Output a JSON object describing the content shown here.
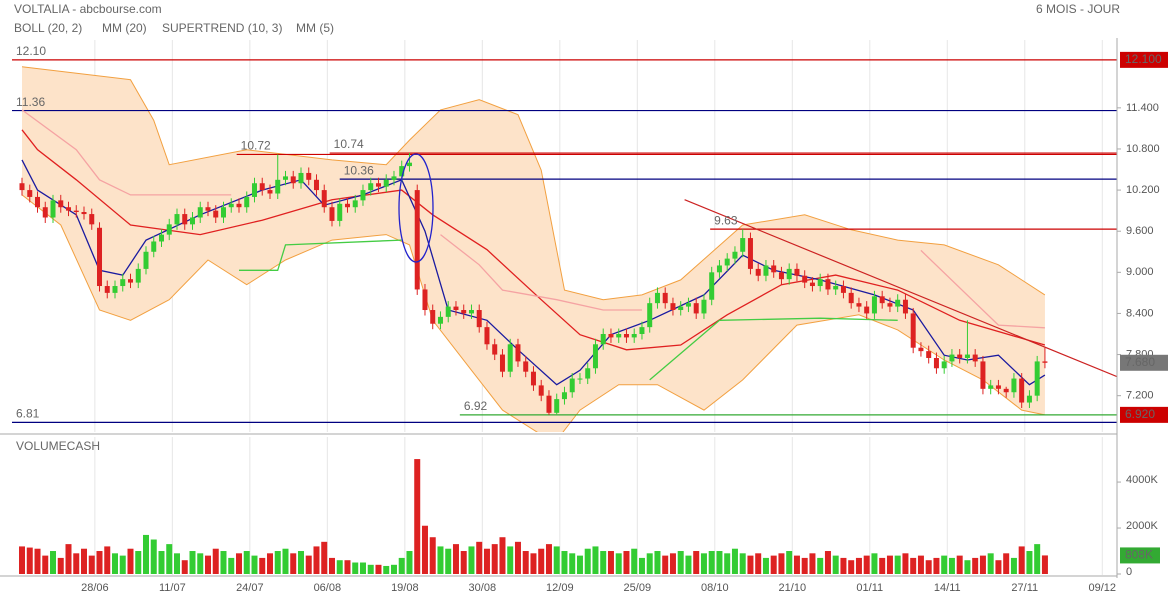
{
  "chart_data": [
    {
      "type": "candlestick",
      "title": "VOLTALIA - abcbourse.com",
      "subtitle": "6 MOIS - JOUR",
      "xlim": [
        -2.84,
        141.3
      ],
      "ylim": [
        6.67,
        12.39
      ],
      "yticks": [
        {
          "value": 11.4,
          "label": "11.400"
        },
        {
          "value": 10.8,
          "label": "10.800"
        },
        {
          "value": 10.2,
          "label": "10.200"
        },
        {
          "value": 9.6,
          "label": "9.600"
        },
        {
          "value": 9.0,
          "label": "9.000"
        },
        {
          "value": 8.4,
          "label": "8.400"
        },
        {
          "value": 7.8,
          "label": "7.800"
        },
        {
          "value": 7.2,
          "label": "7.200"
        }
      ],
      "up_color": "#33cc33",
      "down_color": "#dd2222",
      "open": [
        10.3,
        10.2,
        10.1,
        9.95,
        9.8,
        10.05,
        9.95,
        9.9,
        9.88,
        9.85,
        9.65,
        8.8,
        8.7,
        8.8,
        8.9,
        8.85,
        9.05,
        9.3,
        9.45,
        9.55,
        9.7,
        9.85,
        9.7,
        9.8,
        9.95,
        9.9,
        9.8,
        9.95,
        10.0,
        9.95,
        10.1,
        10.3,
        10.2,
        10.15,
        10.35,
        10.4,
        10.3,
        10.45,
        10.35,
        10.2,
        9.95,
        9.75,
        10.0,
        9.95,
        10.05,
        10.2,
        10.3,
        10.25,
        10.35,
        10.4,
        10.55,
        10.2,
        8.75,
        8.45,
        8.25,
        8.35,
        8.5,
        8.45,
        8.4,
        8.45,
        8.2,
        7.95,
        7.8,
        7.55,
        7.95,
        7.7,
        7.55,
        7.35,
        7.2,
        6.95,
        7.15,
        7.25,
        7.45,
        7.45,
        7.6,
        7.95,
        8.1,
        8.05,
        8.1,
        8.05,
        8.1,
        8.2,
        8.55,
        8.7,
        8.55,
        8.45,
        8.5,
        8.55,
        8.4,
        8.6,
        9.0,
        9.1,
        9.2,
        9.3,
        9.5,
        9.05,
        8.95,
        9.1,
        9.0,
        8.9,
        9.05,
        8.95,
        8.85,
        8.8,
        8.9,
        8.75,
        8.8,
        8.7,
        8.55,
        8.5,
        8.4,
        8.65,
        8.55,
        8.5,
        8.6,
        8.4,
        7.9,
        7.85,
        7.75,
        7.6,
        7.7,
        7.8,
        7.75,
        7.8,
        7.7,
        7.3,
        7.35,
        7.3,
        7.25,
        7.45,
        7.1,
        7.2,
        7.7
      ],
      "high": [
        10.38,
        10.28,
        10.18,
        10.03,
        10.13,
        10.13,
        10.03,
        9.98,
        9.96,
        9.93,
        9.73,
        8.88,
        8.88,
        8.98,
        8.98,
        9.13,
        9.38,
        9.53,
        9.63,
        9.78,
        9.93,
        9.93,
        9.88,
        10.03,
        10.03,
        9.98,
        10.03,
        10.08,
        10.08,
        10.18,
        10.38,
        10.38,
        10.28,
        10.72,
        10.48,
        10.48,
        10.53,
        10.53,
        10.43,
        10.28,
        10.03,
        10.08,
        10.08,
        10.13,
        10.28,
        10.38,
        10.38,
        10.43,
        10.48,
        10.63,
        10.74,
        10.28,
        8.83,
        8.53,
        8.43,
        8.58,
        8.58,
        8.53,
        8.53,
        8.53,
        8.28,
        8.03,
        7.88,
        8.03,
        8.03,
        7.78,
        7.63,
        7.43,
        7.28,
        7.23,
        7.33,
        7.53,
        7.53,
        7.68,
        8.03,
        8.18,
        8.18,
        8.18,
        8.18,
        8.18,
        8.28,
        8.63,
        8.78,
        8.78,
        8.63,
        8.58,
        8.63,
        8.63,
        8.68,
        9.08,
        9.18,
        9.28,
        9.38,
        9.63,
        9.58,
        9.13,
        9.18,
        9.18,
        9.08,
        9.13,
        9.13,
        9.03,
        8.93,
        8.98,
        8.98,
        8.88,
        8.88,
        8.78,
        8.63,
        8.58,
        8.73,
        8.73,
        8.63,
        8.68,
        8.68,
        8.48,
        7.98,
        7.93,
        7.83,
        7.78,
        7.88,
        7.88,
        8.3,
        7.88,
        7.78,
        7.43,
        7.43,
        7.33,
        7.53,
        7.53,
        7.28,
        7.78,
        7.9
      ],
      "low": [
        10.12,
        10.02,
        9.87,
        9.72,
        9.72,
        9.87,
        9.82,
        9.8,
        9.77,
        9.62,
        8.72,
        8.62,
        8.62,
        8.72,
        8.77,
        8.77,
        8.97,
        9.22,
        9.37,
        9.47,
        9.62,
        9.62,
        9.62,
        9.72,
        9.82,
        9.72,
        9.72,
        9.87,
        9.87,
        9.87,
        10.02,
        10.12,
        10.07,
        10.07,
        10.27,
        10.22,
        10.22,
        10.27,
        10.12,
        9.87,
        9.67,
        9.67,
        9.87,
        9.87,
        9.97,
        10.12,
        10.17,
        10.17,
        10.27,
        10.32,
        10.47,
        8.67,
        8.37,
        8.17,
        8.17,
        8.27,
        8.37,
        8.32,
        8.32,
        8.12,
        7.87,
        7.72,
        7.47,
        7.47,
        7.62,
        7.47,
        7.27,
        7.12,
        6.92,
        6.93,
        7.07,
        7.17,
        7.37,
        7.37,
        7.52,
        7.87,
        7.97,
        7.97,
        7.97,
        7.97,
        8.02,
        8.12,
        8.47,
        8.47,
        8.37,
        8.37,
        8.42,
        8.32,
        8.32,
        8.52,
        8.92,
        9.02,
        9.12,
        9.22,
        8.97,
        8.87,
        8.87,
        8.92,
        8.82,
        8.82,
        8.87,
        8.77,
        8.72,
        8.72,
        8.67,
        8.67,
        8.62,
        8.47,
        8.42,
        8.32,
        8.32,
        8.47,
        8.42,
        8.42,
        8.32,
        7.82,
        7.77,
        7.67,
        7.52,
        7.52,
        7.62,
        7.67,
        7.67,
        7.62,
        7.22,
        7.22,
        7.22,
        7.17,
        7.17,
        7.02,
        7.02,
        7.12,
        7.6
      ],
      "close": [
        10.2,
        10.1,
        9.95,
        9.8,
        10.05,
        9.95,
        9.9,
        9.88,
        9.85,
        9.7,
        8.8,
        8.7,
        8.8,
        8.9,
        8.85,
        9.05,
        9.3,
        9.45,
        9.55,
        9.7,
        9.85,
        9.7,
        9.8,
        9.95,
        9.9,
        9.8,
        9.95,
        10.0,
        9.95,
        10.1,
        10.3,
        10.2,
        10.15,
        10.35,
        10.4,
        10.3,
        10.45,
        10.35,
        10.2,
        9.95,
        9.75,
        10.0,
        9.95,
        10.05,
        10.2,
        10.3,
        10.25,
        10.35,
        10.4,
        10.55,
        10.6,
        8.75,
        8.45,
        8.25,
        8.35,
        8.5,
        8.45,
        8.4,
        8.45,
        8.2,
        7.95,
        7.8,
        7.55,
        7.95,
        7.7,
        7.55,
        7.35,
        7.2,
        6.95,
        7.15,
        7.25,
        7.45,
        7.45,
        7.6,
        7.95,
        8.1,
        8.05,
        8.1,
        8.05,
        8.1,
        8.2,
        8.55,
        8.7,
        8.55,
        8.45,
        8.5,
        8.55,
        8.4,
        8.6,
        9.0,
        9.1,
        9.2,
        9.3,
        9.5,
        9.05,
        8.95,
        9.1,
        9.0,
        8.9,
        9.05,
        8.95,
        8.85,
        8.8,
        8.9,
        8.75,
        8.8,
        8.7,
        8.55,
        8.5,
        8.4,
        8.65,
        8.55,
        8.5,
        8.6,
        8.4,
        7.9,
        7.85,
        7.75,
        7.6,
        7.7,
        7.8,
        7.75,
        7.8,
        7.7,
        7.3,
        7.35,
        7.3,
        7.25,
        7.45,
        7.1,
        7.2,
        7.7,
        7.68
      ],
      "series": [
        {
          "name": "BOLL (20, 2)",
          "color": "#f2a040",
          "fill": "#fde3c9",
          "upper": {
            "x": [
              0,
              14,
              17,
              19,
              29,
              40,
              47,
              50,
              54,
              59,
              64,
              67,
              70,
              75,
              80,
              85,
              93,
              101,
              107,
              113,
              119,
              126,
              132
            ],
            "values": [
              12.0,
              11.81,
              11.22,
              10.57,
              10.79,
              10.64,
              10.57,
              10.93,
              11.37,
              11.52,
              11.3,
              10.49,
              8.74,
              8.6,
              8.67,
              8.89,
              9.69,
              9.84,
              9.62,
              9.47,
              9.4,
              9.11,
              8.67
            ]
          },
          "lower": {
            "x": [
              0,
              5,
              10,
              14,
              19,
              24,
              29,
              34,
              40,
              47,
              50,
              53,
              58,
              62,
              67,
              69,
              72,
              77,
              82,
              88,
              93,
              100,
              108,
              113,
              119,
              124,
              129,
              132
            ],
            "values": [
              10.13,
              9.69,
              8.45,
              8.3,
              8.6,
              9.18,
              8.82,
              9.18,
              9.47,
              9.55,
              9.4,
              8.3,
              7.57,
              6.99,
              6.63,
              6.55,
              6.99,
              7.36,
              7.36,
              6.99,
              7.43,
              8.23,
              8.38,
              8.16,
              7.72,
              7.43,
              6.99,
              6.92
            ]
          }
        },
        {
          "name": "MM (20)",
          "color": "#e02020",
          "x": [
            0,
            2,
            7,
            14,
            23,
            31,
            40,
            49,
            53,
            60,
            67,
            72,
            78,
            85,
            91,
            98,
            105,
            113,
            121,
            132
          ],
          "values": [
            11.08,
            10.79,
            10.35,
            9.69,
            9.55,
            9.76,
            10.06,
            10.2,
            9.84,
            9.33,
            8.6,
            8.09,
            7.87,
            7.94,
            8.38,
            8.82,
            8.96,
            8.74,
            8.3,
            7.94
          ]
        },
        {
          "name": "SUPERTREND (10, 3)",
          "color": "#f5a3a3",
          "up_color": "#44cc44",
          "x": [
            0,
            7,
            10,
            14,
            27,
            28,
            33,
            34,
            49,
            54,
            59,
            62,
            69,
            75,
            80,
            81,
            87,
            90,
            103,
            113,
            116,
            126,
            132
          ],
          "values": [
            11.37,
            10.79,
            10.35,
            10.13,
            10.13,
            null,
            null,
            null,
            null,
            9.55,
            9.11,
            8.74,
            8.6,
            8.45,
            8.45,
            null,
            null,
            null,
            null,
            null,
            9.32,
            8.23,
            8.19
          ],
          "up_values": [
            null,
            null,
            null,
            null,
            null,
            9.03,
            9.03,
            9.4,
            9.47,
            null,
            null,
            null,
            null,
            null,
            null,
            7.43,
            8.01,
            8.3,
            8.33,
            8.3,
            null,
            null,
            null
          ]
        },
        {
          "name": "MM (5)",
          "color": "#1a1aa0",
          "x": [
            0,
            2,
            7,
            10,
            13,
            16,
            23,
            31,
            36,
            39,
            44,
            49,
            52,
            55,
            60,
            64,
            69,
            72,
            76,
            81,
            88,
            93,
            97,
            103,
            110,
            115,
            119,
            122,
            126,
            130,
            132
          ],
          "values": [
            10.64,
            10.2,
            9.84,
            9.03,
            8.96,
            9.47,
            9.84,
            10.2,
            10.35,
            9.98,
            10.13,
            10.35,
            9.6,
            8.45,
            8.3,
            7.87,
            7.36,
            7.57,
            8.09,
            8.3,
            8.67,
            9.25,
            9.03,
            8.89,
            8.67,
            8.45,
            7.79,
            7.72,
            7.79,
            7.36,
            7.5
          ]
        }
      ],
      "levels": [
        {
          "value": 12.1,
          "label": "12.10",
          "color": "#cc0000",
          "from": -2.84
        },
        {
          "value": 11.36,
          "label": "11.36",
          "color": "#000080",
          "from": -2.84
        },
        {
          "value": 10.72,
          "label": "10.72",
          "color": "#cc0000",
          "from": 27.7
        },
        {
          "value": 10.74,
          "label": "10.74",
          "color": "#cc0000",
          "from": 39.7
        },
        {
          "value": 10.36,
          "label": "10.36",
          "color": "#000080",
          "from": 41
        },
        {
          "value": 9.63,
          "label": "9.63",
          "color": "#cc0000",
          "from": 88.8
        },
        {
          "value": 6.92,
          "label": "6.92",
          "color": "#33aa33",
          "from": 56.5
        },
        {
          "value": 6.81,
          "label": "6.81",
          "color": "#000080",
          "from": -2.84
        }
      ],
      "trendline": {
        "x": [
          85.5,
          141.7
        ],
        "values": [
          10.06,
          7.46
        ],
        "color": "#cc2222"
      },
      "price_tags": [
        {
          "value": 12.1,
          "label": "12.100",
          "color": "#cc0000"
        },
        {
          "value": 7.68,
          "label": "7.680",
          "color": "#777777"
        },
        {
          "value": 6.92,
          "label": "6.920",
          "color": "#cc0000"
        }
      ]
    },
    {
      "type": "bar",
      "title": "VOLUMECASH",
      "title_color": "#33aa33",
      "xlim": [
        -2.84,
        141.3
      ],
      "ylim": [
        0,
        5830
      ],
      "xticks": [
        {
          "value": 9.4,
          "label": "28/06"
        },
        {
          "value": 19.4,
          "label": "11/07"
        },
        {
          "value": 29.4,
          "label": "24/07"
        },
        {
          "value": 39.4,
          "label": "06/08"
        },
        {
          "value": 49.4,
          "label": "19/08"
        },
        {
          "value": 59.4,
          "label": "30/08"
        },
        {
          "value": 69.4,
          "label": "12/09"
        },
        {
          "value": 79.4,
          "label": "25/09"
        },
        {
          "value": 89.4,
          "label": "08/10"
        },
        {
          "value": 99.4,
          "label": "21/10"
        },
        {
          "value": 109.4,
          "label": "01/11"
        },
        {
          "value": 119.4,
          "label": "14/11"
        },
        {
          "value": 129.4,
          "label": "27/11"
        },
        {
          "value": 139.4,
          "label": "09/12"
        }
      ],
      "yticks": [
        {
          "value": 4000,
          "label": "4000K"
        },
        {
          "value": 2000,
          "label": "2000K"
        },
        0
      ],
      "values": [
        1200,
        1150,
        1100,
        800,
        1000,
        700,
        1300,
        900,
        1100,
        800,
        1000,
        1200,
        900,
        800,
        1100,
        1000,
        1700,
        1500,
        1000,
        1300,
        900,
        600,
        1000,
        900,
        800,
        1100,
        1000,
        700,
        900,
        1000,
        800,
        700,
        900,
        1000,
        1100,
        900,
        1000,
        800,
        1200,
        1400,
        700,
        600,
        600,
        500,
        500,
        400,
        400,
        350,
        400,
        700,
        1000,
        5000,
        2100,
        1600,
        1200,
        1100,
        1300,
        1000,
        1200,
        1400,
        1100,
        1300,
        1600,
        1200,
        1400,
        1000,
        900,
        1100,
        1300,
        1200,
        1000,
        900,
        800,
        1100,
        1200,
        1000,
        1000,
        900,
        1000,
        1100,
        700,
        900,
        1000,
        800,
        900,
        1000,
        800,
        1000,
        900,
        1000,
        1000,
        900,
        1100,
        900,
        800,
        900,
        700,
        800,
        900,
        1000,
        800,
        700,
        900,
        700,
        1000,
        800,
        700,
        600,
        700,
        800,
        900,
        700,
        800,
        800,
        900,
        700,
        800,
        600,
        700,
        800,
        700,
        800,
        600,
        700,
        800,
        900,
        600,
        900,
        700,
        1200,
        1000,
        1300,
        808
      ],
      "tag": {
        "value": 808,
        "label": "808K",
        "color": "#33aa33"
      }
    }
  ]
}
